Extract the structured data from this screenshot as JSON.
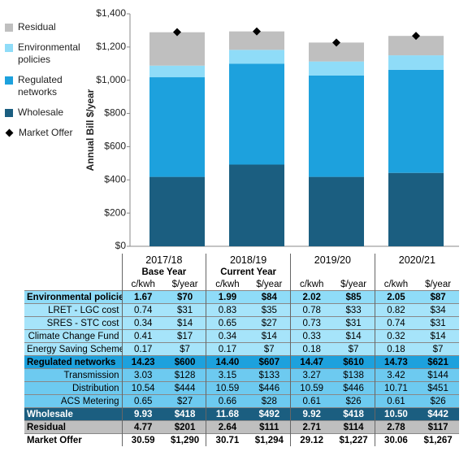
{
  "chart_data": {
    "type": "bar",
    "stacked": true,
    "y_label": "Annual Bill $/year",
    "ylim": [
      0,
      1400
    ],
    "yticks": [
      {
        "value": 0,
        "label": "$0"
      },
      {
        "value": 200,
        "label": "$200"
      },
      {
        "value": 400,
        "label": "$400"
      },
      {
        "value": 600,
        "label": "$600"
      },
      {
        "value": 800,
        "label": "$800"
      },
      {
        "value": 1000,
        "label": "$1,000"
      },
      {
        "value": 1200,
        "label": "$1,200"
      },
      {
        "value": 1400,
        "label": "$1,400"
      }
    ],
    "series": [
      {
        "name": "Wholesale",
        "color": "#1b5e80",
        "values": [
          418,
          492,
          418,
          442
        ]
      },
      {
        "name": "Regulated networks",
        "color": "#1da1dd",
        "values": [
          600,
          607,
          610,
          621
        ]
      },
      {
        "name": "Environmental policies",
        "color": "#8fdcf8",
        "values": [
          70,
          84,
          85,
          87
        ]
      },
      {
        "name": "Residual",
        "color": "#bfbfbf",
        "values": [
          201,
          111,
          114,
          117
        ]
      }
    ],
    "markers": {
      "name": "Market Offer",
      "color": "#000000",
      "values": [
        1290,
        1294,
        1227,
        1267
      ]
    }
  },
  "table": {
    "years": [
      "2017/18",
      "2018/19",
      "2019/20",
      "2020/21"
    ],
    "subtitles": [
      "Base Year",
      "Current Year"
    ],
    "units": [
      "c/kwh",
      "$/year"
    ],
    "rows": [
      {
        "label": "Environmental policies",
        "cells": [
          "1.67",
          "$70",
          "1.99",
          "$84",
          "2.02",
          "$85",
          "2.05",
          "$87"
        ]
      },
      {
        "label": "LRET - LGC cost",
        "cells": [
          "0.74",
          "$31",
          "0.83",
          "$35",
          "0.78",
          "$33",
          "0.82",
          "$34"
        ]
      },
      {
        "label": "SRES - STC cost",
        "cells": [
          "0.34",
          "$14",
          "0.65",
          "$27",
          "0.73",
          "$31",
          "0.74",
          "$31"
        ]
      },
      {
        "label": "Climate Change Fund",
        "cells": [
          "0.41",
          "$17",
          "0.34",
          "$14",
          "0.33",
          "$14",
          "0.32",
          "$14"
        ]
      },
      {
        "label": "Energy Saving Scheme",
        "cells": [
          "0.17",
          "$7",
          "0.17",
          "$7",
          "0.18",
          "$7",
          "0.18",
          "$7"
        ]
      },
      {
        "label": "Regulated networks",
        "cells": [
          "14.23",
          "$600",
          "14.40",
          "$607",
          "14.47",
          "$610",
          "14.73",
          "$621"
        ]
      },
      {
        "label": "Transmission",
        "cells": [
          "3.03",
          "$128",
          "3.15",
          "$133",
          "3.27",
          "$138",
          "3.42",
          "$144"
        ]
      },
      {
        "label": "Distribution",
        "cells": [
          "10.54",
          "$444",
          "10.59",
          "$446",
          "10.59",
          "$446",
          "10.71",
          "$451"
        ]
      },
      {
        "label": "ACS Metering",
        "cells": [
          "0.65",
          "$27",
          "0.66",
          "$28",
          "0.61",
          "$26",
          "0.61",
          "$26"
        ]
      },
      {
        "label": "Wholesale",
        "cells": [
          "9.93",
          "$418",
          "11.68",
          "$492",
          "9.92",
          "$418",
          "10.50",
          "$442"
        ]
      },
      {
        "label": "Residual",
        "cells": [
          "4.77",
          "$201",
          "2.64",
          "$111",
          "2.71",
          "$114",
          "2.78",
          "$117"
        ]
      },
      {
        "label": "Market Offer",
        "cells": [
          "30.59",
          "$1,290",
          "30.71",
          "$1,294",
          "29.12",
          "$1,227",
          "30.06",
          "$1,267"
        ]
      }
    ]
  }
}
